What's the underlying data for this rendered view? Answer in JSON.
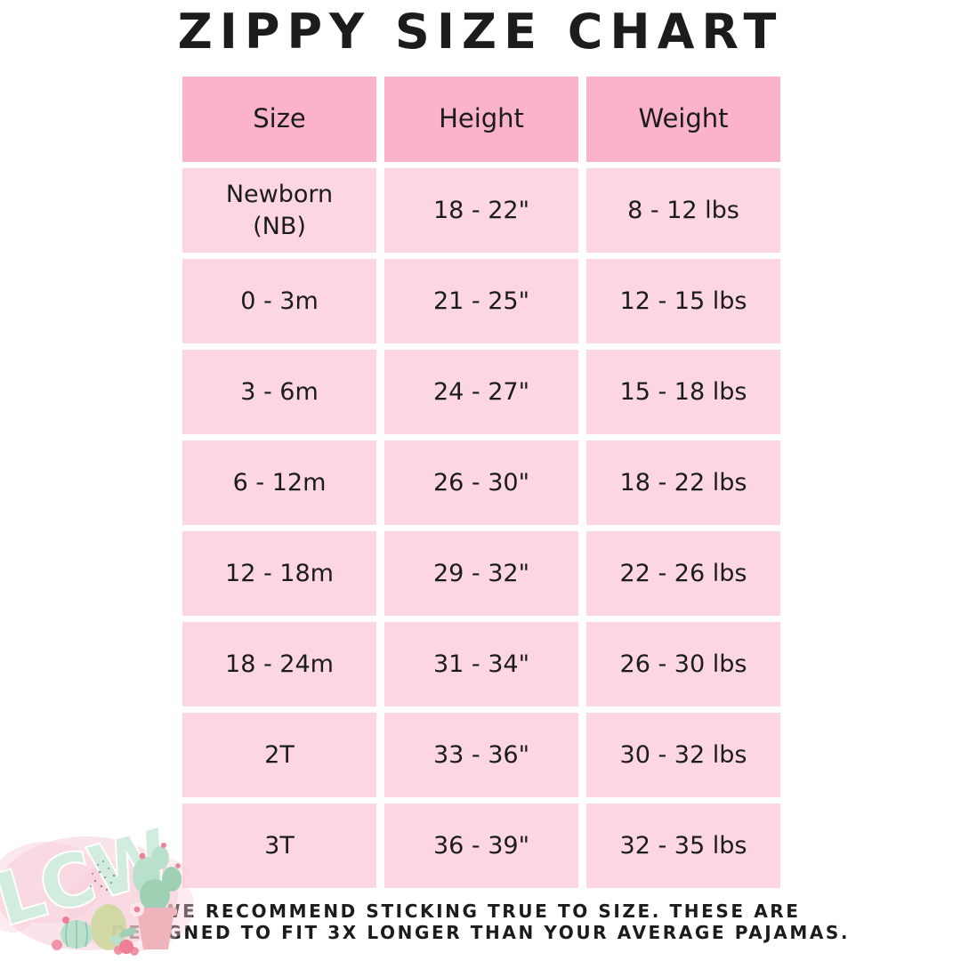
{
  "chart_data": {
    "type": "table",
    "title": "ZIPPY SIZE CHART",
    "columns": [
      "Size",
      "Height",
      "Weight"
    ],
    "rows": [
      [
        "Newborn\n(NB)",
        "18 - 22\"",
        "8 - 12 lbs"
      ],
      [
        "0 - 3m",
        "21 - 25\"",
        "12 - 15 lbs"
      ],
      [
        "3 - 6m",
        "24 - 27\"",
        "15 - 18 lbs"
      ],
      [
        "6 - 12m",
        "26 - 30\"",
        "18 - 22 lbs"
      ],
      [
        "12 - 18m",
        "29 - 32\"",
        "22 - 26 lbs"
      ],
      [
        "18 - 24m",
        "31 - 34\"",
        "26 - 30 lbs"
      ],
      [
        "2T",
        "33 - 36\"",
        "30 - 32 lbs"
      ],
      [
        "3T",
        "36 - 39\"",
        "32 - 35 lbs"
      ]
    ],
    "layout": {
      "header_row_shaded": true,
      "grid_gaps_white": true,
      "legend": "none"
    }
  },
  "footer": {
    "line1": "WE RECOMMEND STICKING TRUE TO SIZE. THESE ARE",
    "line2": "DESIGNED TO FIT 3X LONGER THAN YOUR AVERAGE PAJAMAS."
  },
  "watermark": {
    "logo_text": "LCW"
  },
  "colors": {
    "header_bg": "#fbb3ca",
    "cell_bg": "#fcd7e2",
    "text": "#1c1c1c",
    "watermark_pink": "#f7ccd9",
    "watermark_mint": "#d2ecdd",
    "cactus_green": "#b9e0ca",
    "cactus_green_dark": "#9fd0b4",
    "pot_pink": "#eeb3bb",
    "bud_pink": "#ee7f97",
    "olive_green": "#cdd79c"
  }
}
